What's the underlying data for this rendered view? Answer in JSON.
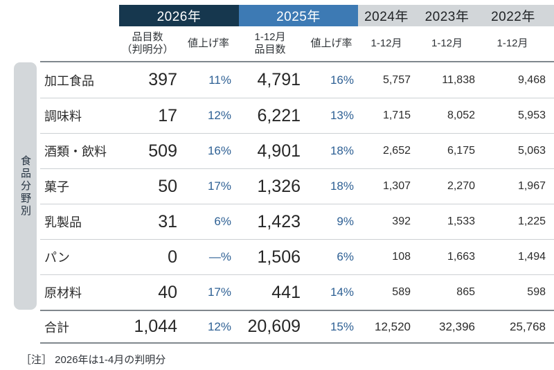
{
  "colors": {
    "band_2026_bg": "#16374e",
    "band_2025_bg": "#3d7ab4",
    "band_prev_bg": "#d2d6d9",
    "percent_text": "#2e6094"
  },
  "chart_data": {
    "type": "table",
    "year_bands": {
      "y2026": "2026年",
      "y2025": "2025年"
    },
    "plain_years": {
      "y2024": "2024年",
      "y2023": "2023年",
      "y2022": "2022年"
    },
    "subheaders": [
      {
        "line1": "品目数",
        "line2": "（判明分）"
      },
      {
        "line1": "値上げ率",
        "line2": ""
      },
      {
        "line1": "1-12月",
        "line2": "品目数"
      },
      {
        "line1": "値上げ率",
        "line2": ""
      },
      {
        "line1": "1-12月",
        "line2": ""
      },
      {
        "line1": "1-12月",
        "line2": ""
      },
      {
        "line1": "1-12月",
        "line2": ""
      }
    ],
    "side_label": "食品分野別",
    "rows": [
      {
        "label": "加工食品",
        "values": [
          "397",
          "11%",
          "4,791",
          "16%",
          "5,757",
          "11,838",
          "9,468"
        ]
      },
      {
        "label": "調味料",
        "values": [
          "17",
          "12%",
          "6,221",
          "13%",
          "1,715",
          "8,052",
          "5,953"
        ]
      },
      {
        "label": "酒類・飲料",
        "values": [
          "509",
          "16%",
          "4,901",
          "18%",
          "2,652",
          "6,175",
          "5,063"
        ]
      },
      {
        "label": "菓子",
        "values": [
          "50",
          "17%",
          "1,326",
          "18%",
          "1,307",
          "2,270",
          "1,967"
        ]
      },
      {
        "label": "乳製品",
        "values": [
          "31",
          "6%",
          "1,423",
          "9%",
          "392",
          "1,533",
          "1,225"
        ]
      },
      {
        "label": "パン",
        "values": [
          "0",
          "—%",
          "1,506",
          "6%",
          "108",
          "1,663",
          "1,494"
        ]
      },
      {
        "label": "原材料",
        "values": [
          "40",
          "17%",
          "441",
          "14%",
          "589",
          "865",
          "598"
        ]
      }
    ],
    "total": {
      "label": "合計",
      "values": [
        "1,044",
        "12%",
        "20,609",
        "15%",
        "12,520",
        "32,396",
        "25,768"
      ]
    },
    "note": "［注］ 2026年は1-4月の判明分"
  }
}
